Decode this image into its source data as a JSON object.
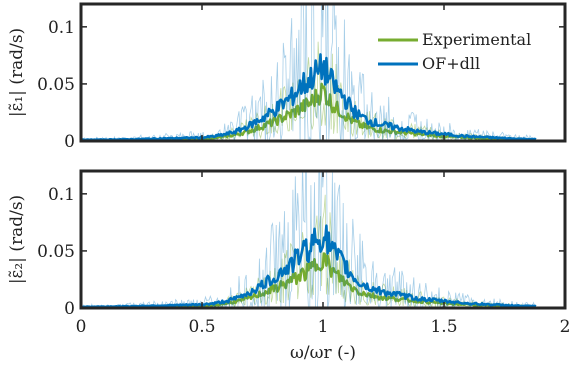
{
  "colors": {
    "experimental": "#77ac30",
    "ofdll": "#0072bd",
    "axes": "#262626"
  },
  "chart_data": [
    {
      "type": "line",
      "panel": "top",
      "ylabel_text": "(rad/s)",
      "ylabel_symbol": "|ε̃₁|",
      "xlim": [
        0,
        2
      ],
      "ylim": [
        0,
        0.12
      ],
      "yticks": [
        0,
        0.05,
        0.1
      ],
      "ytick_labels": [
        "0",
        "0.05",
        "0.1"
      ],
      "xticks": [
        0,
        0.5,
        1,
        1.5,
        2
      ],
      "xtick_labels": [],
      "grid": false,
      "legend": {
        "placement": "top-right",
        "entries": [
          "Experimental",
          "OF+dll"
        ]
      },
      "x": [
        0.0,
        0.1,
        0.2,
        0.3,
        0.4,
        0.5,
        0.55,
        0.6,
        0.65,
        0.7,
        0.75,
        0.8,
        0.85,
        0.88,
        0.9,
        0.92,
        0.94,
        0.96,
        0.98,
        1.0,
        1.02,
        1.04,
        1.06,
        1.08,
        1.1,
        1.12,
        1.15,
        1.2,
        1.25,
        1.3,
        1.35,
        1.4,
        1.45,
        1.5,
        1.55,
        1.6,
        1.7,
        1.8,
        1.88
      ],
      "series": [
        {
          "name": "Experimental",
          "color_key": "experimental",
          "values": [
            0.0005,
            0.0006,
            0.0008,
            0.001,
            0.0012,
            0.0018,
            0.0025,
            0.004,
            0.006,
            0.009,
            0.013,
            0.017,
            0.022,
            0.025,
            0.028,
            0.03,
            0.032,
            0.036,
            0.04,
            0.045,
            0.038,
            0.032,
            0.028,
            0.025,
            0.021,
            0.018,
            0.014,
            0.011,
            0.009,
            0.008,
            0.007,
            0.006,
            0.005,
            0.004,
            0.0035,
            0.003,
            0.002,
            0.0015,
            0.001
          ]
        },
        {
          "name": "OF+dll",
          "color_key": "ofdll",
          "values": [
            0.001,
            0.0012,
            0.0015,
            0.002,
            0.0025,
            0.003,
            0.004,
            0.006,
            0.009,
            0.014,
            0.02,
            0.027,
            0.035,
            0.04,
            0.046,
            0.05,
            0.052,
            0.058,
            0.06,
            0.065,
            0.058,
            0.05,
            0.044,
            0.04,
            0.034,
            0.028,
            0.022,
            0.017,
            0.014,
            0.012,
            0.01,
            0.008,
            0.007,
            0.006,
            0.005,
            0.004,
            0.003,
            0.002,
            0.0015
          ]
        }
      ]
    },
    {
      "type": "line",
      "panel": "bottom",
      "ylabel_text": "(rad/s)",
      "ylabel_symbol": "|ε̃₂|",
      "xlabel_symbol": "ω/ωr",
      "xlabel_text": "(-)",
      "xlim": [
        0,
        2
      ],
      "ylim": [
        0,
        0.12
      ],
      "yticks": [
        0,
        0.05,
        0.1
      ],
      "ytick_labels": [
        "0",
        "0.05",
        "0.1"
      ],
      "xticks": [
        0,
        0.5,
        1,
        1.5,
        2
      ],
      "xtick_labels": [
        "0",
        "0.5",
        "1",
        "1.5",
        "2"
      ],
      "grid": false,
      "x": [
        0.0,
        0.1,
        0.2,
        0.3,
        0.4,
        0.5,
        0.55,
        0.6,
        0.65,
        0.7,
        0.75,
        0.8,
        0.85,
        0.88,
        0.9,
        0.92,
        0.94,
        0.96,
        0.98,
        1.0,
        1.02,
        1.04,
        1.06,
        1.08,
        1.1,
        1.12,
        1.15,
        1.2,
        1.25,
        1.3,
        1.35,
        1.4,
        1.45,
        1.5,
        1.55,
        1.6,
        1.7,
        1.8,
        1.88
      ],
      "series": [
        {
          "name": "Experimental",
          "color_key": "experimental",
          "values": [
            0.0005,
            0.0006,
            0.0008,
            0.001,
            0.0012,
            0.0018,
            0.0025,
            0.004,
            0.006,
            0.009,
            0.013,
            0.017,
            0.022,
            0.025,
            0.028,
            0.03,
            0.032,
            0.036,
            0.04,
            0.045,
            0.038,
            0.032,
            0.028,
            0.025,
            0.021,
            0.018,
            0.014,
            0.011,
            0.009,
            0.008,
            0.007,
            0.006,
            0.005,
            0.004,
            0.0035,
            0.003,
            0.002,
            0.0015,
            0.001
          ]
        },
        {
          "name": "OF+dll",
          "color_key": "ofdll",
          "values": [
            0.001,
            0.0012,
            0.0015,
            0.002,
            0.0025,
            0.003,
            0.004,
            0.006,
            0.009,
            0.014,
            0.02,
            0.027,
            0.035,
            0.04,
            0.046,
            0.05,
            0.052,
            0.058,
            0.06,
            0.065,
            0.058,
            0.05,
            0.044,
            0.04,
            0.034,
            0.028,
            0.022,
            0.017,
            0.014,
            0.012,
            0.01,
            0.008,
            0.007,
            0.006,
            0.005,
            0.004,
            0.003,
            0.002,
            0.0015
          ]
        }
      ]
    }
  ]
}
